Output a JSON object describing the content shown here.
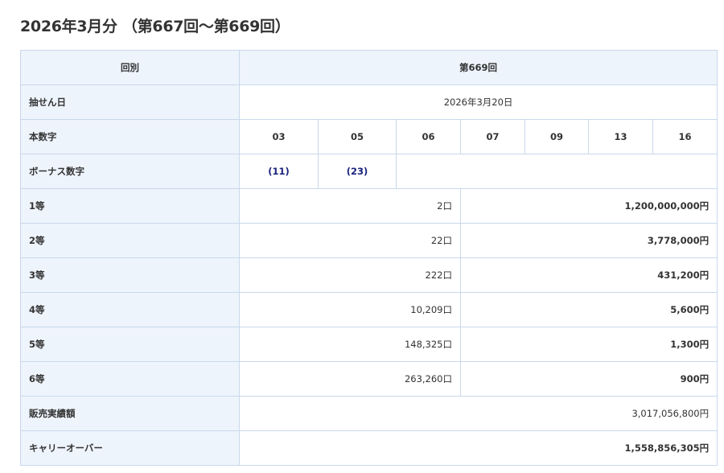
{
  "title": "2026年3月分 （第667回～第669回）",
  "header": {
    "label": "回別",
    "value": "第669回"
  },
  "draw_date": {
    "label": "抽せん日",
    "value": "2026年3月20日"
  },
  "main_numbers": {
    "label": "本数字",
    "values": [
      "03",
      "05",
      "06",
      "07",
      "09",
      "13",
      "16"
    ]
  },
  "bonus_numbers": {
    "label": "ボーナス数字",
    "values": [
      "(11)",
      "(23)"
    ]
  },
  "prizes": [
    {
      "label": "1等",
      "winners": "2口",
      "amount": "1,200,000,000円"
    },
    {
      "label": "2等",
      "winners": "22口",
      "amount": "3,778,000円"
    },
    {
      "label": "3等",
      "winners": "222口",
      "amount": "431,200円"
    },
    {
      "label": "4等",
      "winners": "10,209口",
      "amount": "5,600円"
    },
    {
      "label": "5等",
      "winners": "148,325口",
      "amount": "1,300円"
    },
    {
      "label": "6等",
      "winners": "263,260口",
      "amount": "900円"
    }
  ],
  "sales": {
    "label": "販売実績額",
    "value": "3,017,056,800円"
  },
  "carryover": {
    "label": "キャリーオーバー",
    "value": "1,558,856,305円"
  },
  "colors": {
    "header_bg": "#eef4fc",
    "border": "#c9d8ec",
    "bonus": "#1a237e"
  }
}
